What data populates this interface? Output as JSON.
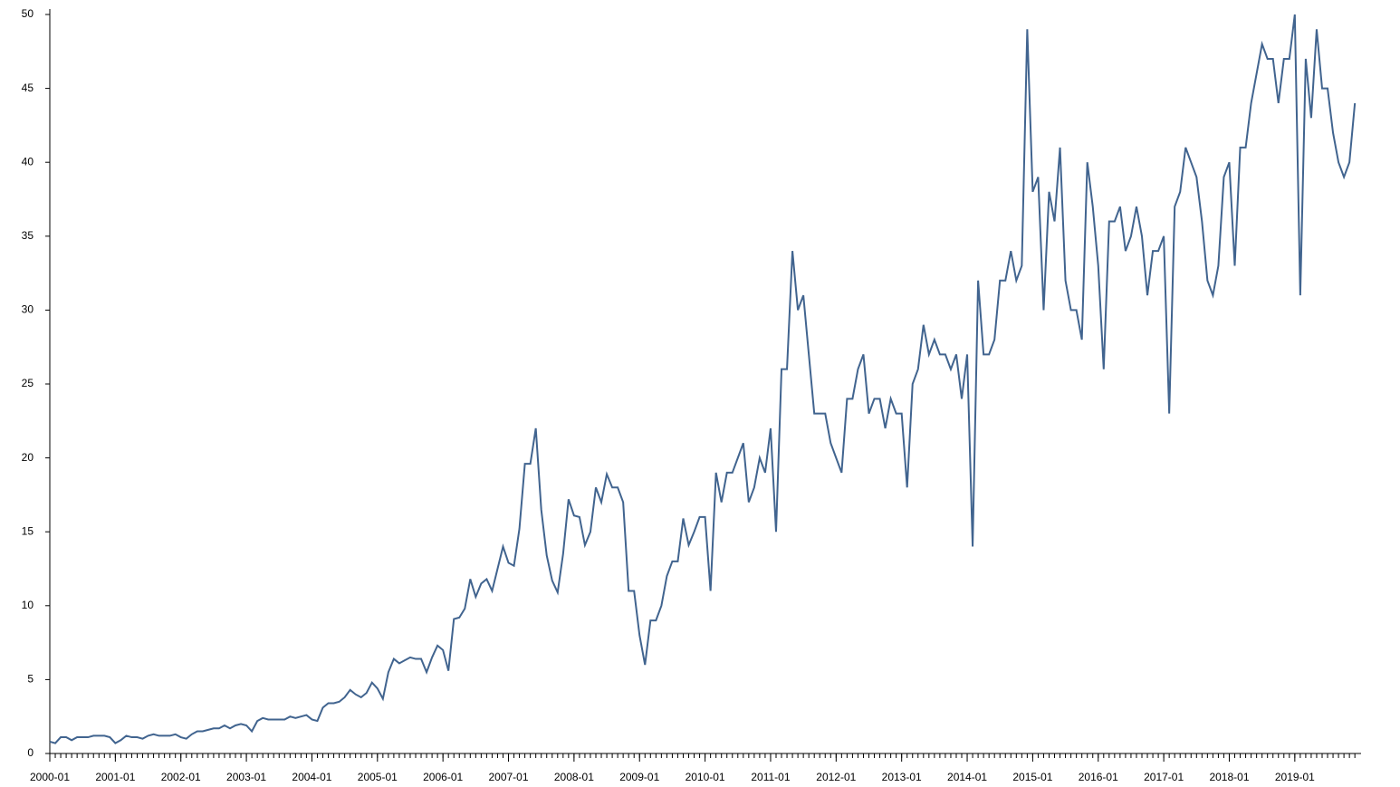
{
  "chart_data": {
    "type": "line",
    "x": [
      "2000-01",
      "2000-02",
      "2000-03",
      "2000-04",
      "2000-05",
      "2000-06",
      "2000-07",
      "2000-08",
      "2000-09",
      "2000-10",
      "2000-11",
      "2000-12",
      "2001-01",
      "2001-02",
      "2001-03",
      "2001-04",
      "2001-05",
      "2001-06",
      "2001-07",
      "2001-08",
      "2001-09",
      "2001-10",
      "2001-11",
      "2001-12",
      "2002-01",
      "2002-02",
      "2002-03",
      "2002-04",
      "2002-05",
      "2002-06",
      "2002-07",
      "2002-08",
      "2002-09",
      "2002-10",
      "2002-11",
      "2002-12",
      "2003-01",
      "2003-02",
      "2003-03",
      "2003-04",
      "2003-05",
      "2003-06",
      "2003-07",
      "2003-08",
      "2003-09",
      "2003-10",
      "2003-11",
      "2003-12",
      "2004-01",
      "2004-02",
      "2004-03",
      "2004-04",
      "2004-05",
      "2004-06",
      "2004-07",
      "2004-08",
      "2004-09",
      "2004-10",
      "2004-11",
      "2004-12",
      "2005-01",
      "2005-02",
      "2005-03",
      "2005-04",
      "2005-05",
      "2005-06",
      "2005-07",
      "2005-08",
      "2005-09",
      "2005-10",
      "2005-11",
      "2005-12",
      "2006-01",
      "2006-02",
      "2006-03",
      "2006-04",
      "2006-05",
      "2006-06",
      "2006-07",
      "2006-08",
      "2006-09",
      "2006-10",
      "2006-11",
      "2006-12",
      "2007-01",
      "2007-02",
      "2007-03",
      "2007-04",
      "2007-05",
      "2007-06",
      "2007-07",
      "2007-08",
      "2007-09",
      "2007-10",
      "2007-11",
      "2007-12",
      "2008-01",
      "2008-02",
      "2008-03",
      "2008-04",
      "2008-05",
      "2008-06",
      "2008-07",
      "2008-08",
      "2008-09",
      "2008-10",
      "2008-11",
      "2008-12",
      "2009-01",
      "2009-02",
      "2009-03",
      "2009-04",
      "2009-05",
      "2009-06",
      "2009-07",
      "2009-08",
      "2009-09",
      "2009-10",
      "2009-11",
      "2009-12",
      "2010-01",
      "2010-02",
      "2010-03",
      "2010-04",
      "2010-05",
      "2010-06",
      "2010-07",
      "2010-08",
      "2010-09",
      "2010-10",
      "2010-11",
      "2010-12",
      "2011-01",
      "2011-02",
      "2011-03",
      "2011-04",
      "2011-05",
      "2011-06",
      "2011-07",
      "2011-08",
      "2011-09",
      "2011-10",
      "2011-11",
      "2011-12",
      "2012-01",
      "2012-02",
      "2012-03",
      "2012-04",
      "2012-05",
      "2012-06",
      "2012-07",
      "2012-08",
      "2012-09",
      "2012-10",
      "2012-11",
      "2012-12",
      "2013-01",
      "2013-02",
      "2013-03",
      "2013-04",
      "2013-05",
      "2013-06",
      "2013-07",
      "2013-08",
      "2013-09",
      "2013-10",
      "2013-11",
      "2013-12",
      "2014-01",
      "2014-02",
      "2014-03",
      "2014-04",
      "2014-05",
      "2014-06",
      "2014-07",
      "2014-08",
      "2014-09",
      "2014-10",
      "2014-11",
      "2014-12",
      "2015-01",
      "2015-02",
      "2015-03",
      "2015-04",
      "2015-05",
      "2015-06",
      "2015-07",
      "2015-08",
      "2015-09",
      "2015-10",
      "2015-11",
      "2015-12",
      "2016-01",
      "2016-02",
      "2016-03",
      "2016-04",
      "2016-05",
      "2016-06",
      "2016-07",
      "2016-08",
      "2016-09",
      "2016-10",
      "2016-11",
      "2016-12",
      "2017-01",
      "2017-02",
      "2017-03",
      "2017-04",
      "2017-05",
      "2017-06",
      "2017-07",
      "2017-08",
      "2017-09",
      "2017-10",
      "2017-11",
      "2017-12",
      "2018-01",
      "2018-02",
      "2018-03",
      "2018-04",
      "2018-05",
      "2018-06",
      "2018-07",
      "2018-08",
      "2018-09",
      "2018-10",
      "2018-11",
      "2018-12",
      "2019-01",
      "2019-02",
      "2019-03",
      "2019-04",
      "2019-05",
      "2019-06",
      "2019-07",
      "2019-08",
      "2019-09",
      "2019-10",
      "2019-11",
      "2019-12"
    ],
    "series": [
      {
        "color": "#41648f",
        "values": [
          0.8,
          0.7,
          1.1,
          1.1,
          0.9,
          1.1,
          1.1,
          1.1,
          1.2,
          1.2,
          1.2,
          1.1,
          0.7,
          0.9,
          1.2,
          1.1,
          1.1,
          1.0,
          1.2,
          1.3,
          1.2,
          1.2,
          1.2,
          1.3,
          1.1,
          1.0,
          1.3,
          1.5,
          1.5,
          1.6,
          1.7,
          1.7,
          1.9,
          1.7,
          1.9,
          2.0,
          1.9,
          1.5,
          2.2,
          2.4,
          2.3,
          2.3,
          2.3,
          2.3,
          2.5,
          2.4,
          2.5,
          2.6,
          2.3,
          2.2,
          3.1,
          3.4,
          3.4,
          3.5,
          3.8,
          4.3,
          4.0,
          3.8,
          4.1,
          4.8,
          4.4,
          3.7,
          5.5,
          6.4,
          6.1,
          6.3,
          6.5,
          6.4,
          6.4,
          5.5,
          6.5,
          7.3,
          7.0,
          5.6,
          9.1,
          9.2,
          9.8,
          11.8,
          10.6,
          11.5,
          11.8,
          11.0,
          12.5,
          14.0,
          12.9,
          12.7,
          15.2,
          19.6,
          19.6,
          22.0,
          16.5,
          13.4,
          11.7,
          10.9,
          13.5,
          17.2,
          16.1,
          16.0,
          14.1,
          15.0,
          18.0,
          17.0,
          18.9,
          18.0,
          18.0,
          17.0,
          11.0,
          11.0,
          8.0,
          6.0,
          9.0,
          9.0,
          10.0,
          12.0,
          13.0,
          13.0,
          15.9,
          14.1,
          15.0,
          16.0,
          16.0,
          11.0,
          19.0,
          17.0,
          19.0,
          19.0,
          20.0,
          21.0,
          17.0,
          18.0,
          20.0,
          19.0,
          22.0,
          15.0,
          26.0,
          26.0,
          34.0,
          30.0,
          31.0,
          27.0,
          23.0,
          23.0,
          23.0,
          21.0,
          20.0,
          19.0,
          24.0,
          24.0,
          26.0,
          27.0,
          23.0,
          24.0,
          24.0,
          22.0,
          24.0,
          23.0,
          23.0,
          18.0,
          25.0,
          26.0,
          29.0,
          27.0,
          28.0,
          27.0,
          27.0,
          26.0,
          27.0,
          24.0,
          27.0,
          14.0,
          32.0,
          27.0,
          27.0,
          28.0,
          32.0,
          32.0,
          34.0,
          32.0,
          33.0,
          49.0,
          38.0,
          39.0,
          30.0,
          38.0,
          36.0,
          41.0,
          32.0,
          30.0,
          30.0,
          28.0,
          40.0,
          37.0,
          33.0,
          26.0,
          36.0,
          36.0,
          37.0,
          34.0,
          35.0,
          37.0,
          35.0,
          31.0,
          34.0,
          34.0,
          35.0,
          23.0,
          37.0,
          38.0,
          41.0,
          40.0,
          39.0,
          36.0,
          32.0,
          31.0,
          33.0,
          39.0,
          40.0,
          33.0,
          41.0,
          41.0,
          44.0,
          46.0,
          48.0,
          47.0,
          47.0,
          44.0,
          47.0,
          47.0,
          50.0,
          31.0,
          47.0,
          43.0,
          49.0,
          45.0,
          45.0,
          42.0,
          40.0,
          39.0,
          40.0,
          44.0
        ]
      }
    ],
    "xticks": [
      "2000-01",
      "2001-01",
      "2002-01",
      "2003-01",
      "2004-01",
      "2005-01",
      "2006-01",
      "2007-01",
      "2008-01",
      "2009-01",
      "2010-01",
      "2011-01",
      "2012-01",
      "2013-01",
      "2014-01",
      "2015-01",
      "2016-01",
      "2017-01",
      "2018-01",
      "2019-01"
    ],
    "ylim": [
      0,
      50
    ],
    "yticks": [
      0,
      5,
      10,
      15,
      20,
      25,
      30,
      35,
      40,
      45,
      50
    ],
    "grid": false
  }
}
